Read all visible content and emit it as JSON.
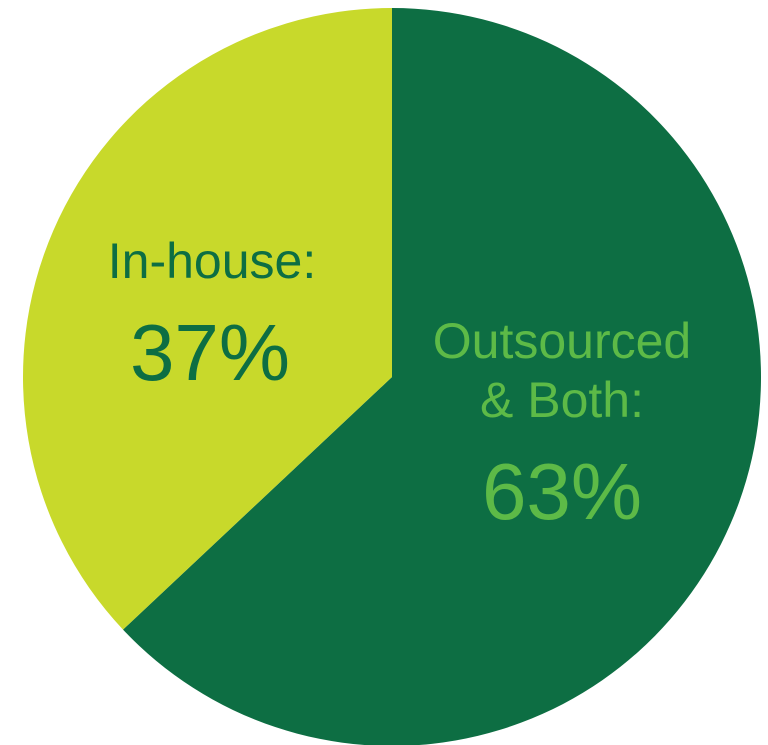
{
  "chart_data": {
    "type": "pie",
    "title": "",
    "slices": [
      {
        "label_lines": [
          "Outsourced",
          "& Both:"
        ],
        "value_label": "63%",
        "value": 63,
        "color": "#0d6e43",
        "text_color": "#5dba47"
      },
      {
        "label_lines": [
          "In-house:"
        ],
        "value_label": "37%",
        "value": 37,
        "color": "#c8d92b",
        "text_color": "#0d6e43"
      }
    ],
    "start": "12 o'clock",
    "direction": "clockwise",
    "legend": "none"
  }
}
